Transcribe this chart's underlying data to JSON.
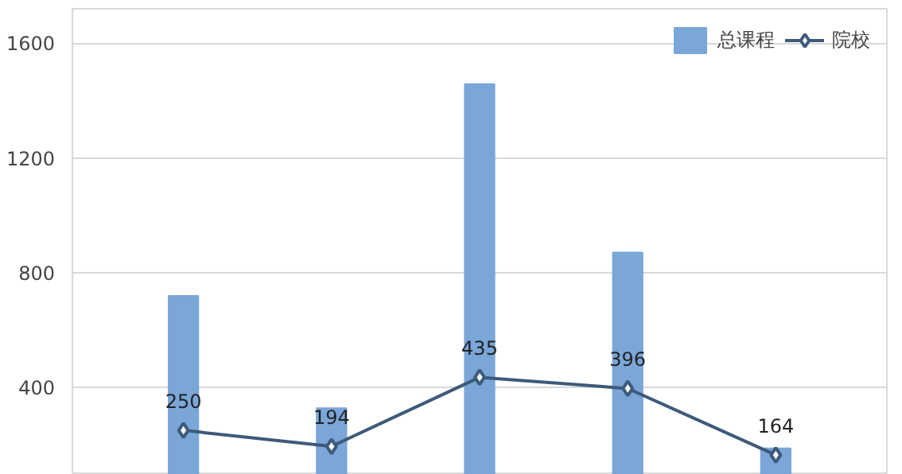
{
  "chart_data": {
    "type": "bar",
    "categories": [
      null,
      null,
      null,
      null,
      null
    ],
    "series": [
      {
        "name": "总课程",
        "color": "#7aa6d8",
        "values": [
          719,
          327,
          1457,
          870,
          187
        ]
      },
      {
        "name": "院校",
        "type": "line",
        "color": "#3d5a7a",
        "values": [
          250,
          194,
          435,
          396,
          164
        ],
        "marker": "diamond",
        "line_style": "solid",
        "data_labels": true
      }
    ],
    "ylim": [
      95,
      1720
    ],
    "yticks": [
      400,
      800,
      1200,
      1600
    ],
    "grid": "y",
    "legend": "top right",
    "tick_labels": "y"
  }
}
